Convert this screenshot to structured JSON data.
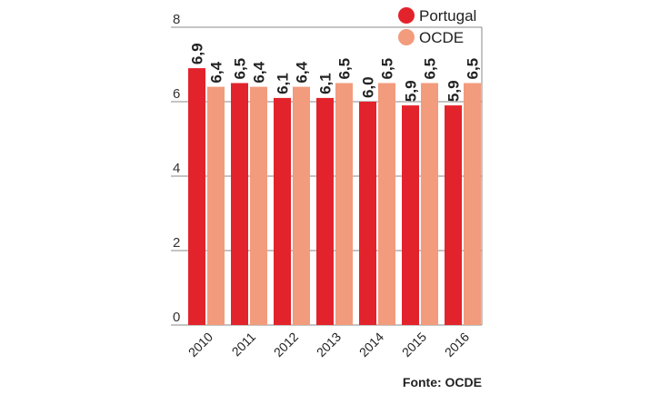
{
  "chart_data": {
    "type": "bar",
    "categories": [
      "2010",
      "2011",
      "2012",
      "2013",
      "2014",
      "2015",
      "2016"
    ],
    "series": [
      {
        "name": "Portugal",
        "values": [
          6.9,
          6.5,
          6.1,
          6.1,
          6.0,
          5.9,
          5.9
        ],
        "labels": [
          "6,9",
          "6,5",
          "6,1",
          "6,1",
          "6,0",
          "5,9",
          "5,9"
        ],
        "color": "#e3232c"
      },
      {
        "name": "OCDE",
        "values": [
          6.4,
          6.4,
          6.4,
          6.5,
          6.5,
          6.5,
          6.5
        ],
        "labels": [
          "6,4",
          "6,4",
          "6,4",
          "6,5",
          "6,5",
          "6,5",
          "6,5"
        ],
        "color": "#f29b7d"
      }
    ],
    "ylim": [
      0,
      8
    ],
    "yticks": [
      "0",
      "2",
      "4",
      "6",
      "8"
    ],
    "grid": true,
    "legend_position": "top-right",
    "source": "Fonte: OCDE"
  }
}
